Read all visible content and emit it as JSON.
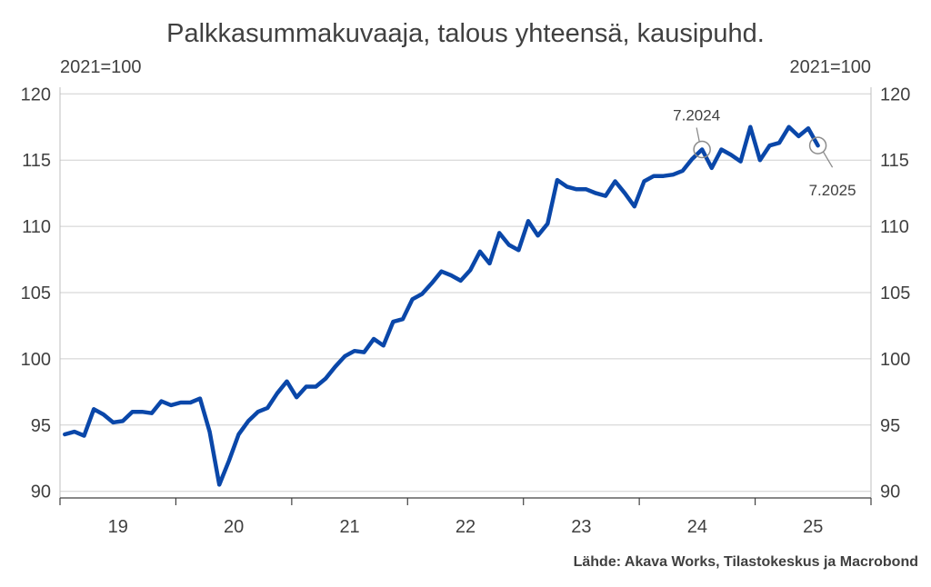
{
  "chart_data": {
    "type": "line",
    "title": "Palkkasummakuvaaja, talous yhteensä, kausipuhd.",
    "unit_left": "2021=100",
    "unit_right": "2021=100",
    "source": "Lähde: Akava Works, Tilastokeskus ja Macrobond",
    "ylim": [
      89.5,
      120.5
    ],
    "yticks": [
      90,
      95,
      100,
      105,
      110,
      115,
      120
    ],
    "x_range": [
      2019.0,
      2026.0
    ],
    "x_year_ticks": [
      {
        "label": "19",
        "year": 2019
      },
      {
        "label": "20",
        "year": 2020
      },
      {
        "label": "21",
        "year": 2021
      },
      {
        "label": "22",
        "year": 2022
      },
      {
        "label": "23",
        "year": 2023
      },
      {
        "label": "24",
        "year": 2024
      },
      {
        "label": "25",
        "year": 2025
      }
    ],
    "grid": true,
    "series": [
      {
        "color": "#0a47a9",
        "start": "2019-01",
        "frequency": "monthly",
        "values": [
          94.3,
          94.5,
          94.2,
          96.2,
          95.8,
          95.2,
          95.3,
          96.0,
          96.0,
          95.9,
          96.8,
          96.5,
          96.7,
          96.7,
          97.0,
          94.5,
          90.5,
          92.3,
          94.3,
          95.3,
          96.0,
          96.3,
          97.4,
          98.3,
          97.1,
          97.9,
          97.9,
          98.5,
          99.4,
          100.2,
          100.6,
          100.5,
          101.5,
          101.0,
          102.8,
          103.0,
          104.5,
          104.9,
          105.7,
          106.6,
          106.3,
          105.9,
          106.7,
          108.1,
          107.2,
          109.5,
          108.6,
          108.2,
          110.4,
          109.3,
          110.2,
          113.5,
          113.0,
          112.8,
          112.8,
          112.5,
          112.3,
          113.4,
          112.5,
          111.5,
          113.4,
          113.8,
          113.8,
          113.9,
          114.2,
          115.1,
          115.8,
          114.4,
          115.8,
          115.4,
          114.9,
          117.5,
          115.0,
          116.1,
          116.3,
          117.5,
          116.8,
          117.4,
          116.1
        ]
      }
    ],
    "annotations": [
      {
        "label": "7.2024",
        "date": "2024-07",
        "value": 115.8
      },
      {
        "label": "7.2025",
        "date": "2025-07",
        "value": 116.1
      }
    ]
  }
}
